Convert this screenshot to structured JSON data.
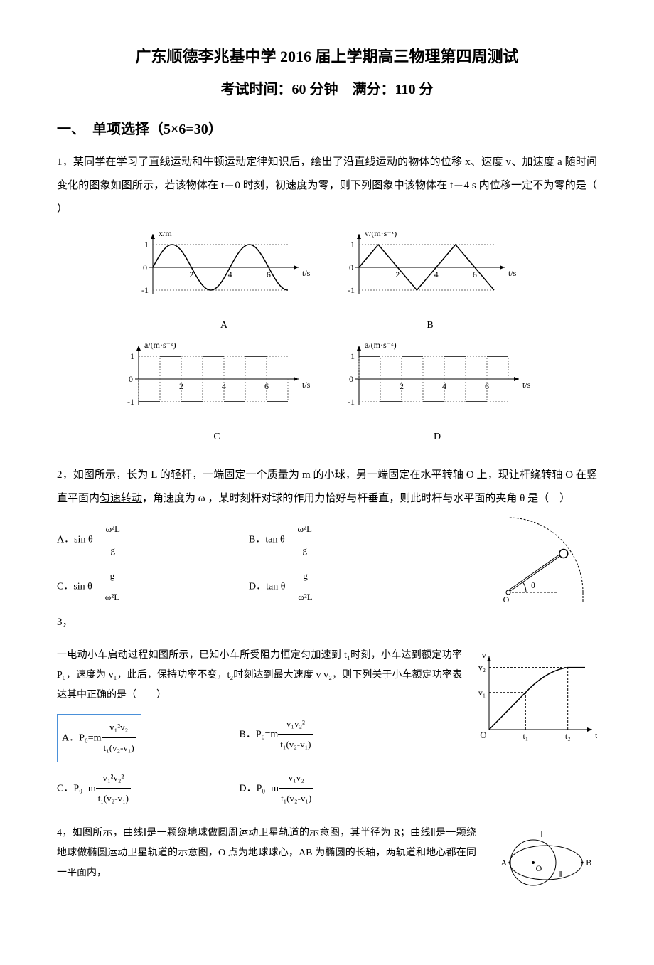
{
  "title_main": "广东顺德李兆基中学 2016 届上学期高三物理第四周测试",
  "title_sub": "考试时间：60 分钟　满分：110 分",
  "section1_header": "一、　单项选择（5×6=30）",
  "q1": {
    "prefix": "1，",
    "text": "某同学在学习了直线运动和牛顿运动定律知识后，绘出了沿直线运动的物体的位移 x、速度 v、加速度 a 随时间变化的图象如图所示，若该物体在 t＝0 时刻，初速度为零，则下列图象中该物体在 t＝4 s 内位移一定不为零的是（ ）",
    "charts": {
      "A": {
        "type": "line",
        "ylabel": "x/m",
        "xlabel": "t/s",
        "ylim": [
          -1,
          1
        ],
        "xlim": [
          0,
          7
        ],
        "yticks": [
          -1,
          0,
          1
        ],
        "xticks": [
          2,
          4,
          6
        ],
        "curve": "sine",
        "period": 4,
        "amplitude": 1,
        "line_color": "#000000",
        "grid_dash": "2,2",
        "grid_color": "#666666"
      },
      "B": {
        "type": "line",
        "ylabel": "v/(m·s⁻¹)",
        "xlabel": "t/s",
        "ylim": [
          -1,
          1
        ],
        "xlim": [
          0,
          7
        ],
        "yticks": [
          -1,
          0,
          1
        ],
        "xticks": [
          2,
          4,
          6
        ],
        "curve": "triangle",
        "period": 4,
        "amplitude": 1,
        "line_color": "#000000",
        "grid_dash": "2,2",
        "grid_color": "#666666"
      },
      "C": {
        "type": "step",
        "ylabel": "a/(m·s⁻²)",
        "xlabel": "t/s",
        "ylim": [
          -1,
          1
        ],
        "xlim": [
          0,
          7
        ],
        "yticks": [
          -1,
          0,
          1
        ],
        "xticks": [
          2,
          4,
          6
        ],
        "pattern": "square_alt_start_neg",
        "line_color": "#000000",
        "grid_dash": "2,2",
        "grid_color": "#666666"
      },
      "D": {
        "type": "step",
        "ylabel": "a/(m·s⁻²)",
        "xlabel": "t/s",
        "ylim": [
          -1,
          1
        ],
        "xlim": [
          0,
          7
        ],
        "yticks": [
          -1,
          0,
          1
        ],
        "xticks": [
          2,
          4,
          6
        ],
        "pattern": "square_alt_start_pos",
        "line_color": "#000000",
        "grid_dash": "2,2",
        "grid_color": "#666666"
      },
      "labels": {
        "A": "A",
        "B": "B",
        "C": "C",
        "D": "D"
      }
    }
  },
  "q2": {
    "prefix": "2，",
    "text_before": "如图所示，长为 L 的轻杆，一端固定一个质量为 m 的小球，另一端固定在水平转轴 O 上，现让杆绕转轴 O 在竖直平面内",
    "underline": "匀速转动",
    "text_after": "，角速度为 ω ，某时刻杆对球的作用力恰好与杆垂直，则此时杆与水平面的夹角 θ 是（　）",
    "options": {
      "A": {
        "label": "A．sin θ = ",
        "num": "ω²L",
        "den": "g"
      },
      "B": {
        "label": "B．tan θ = ",
        "num": "ω²L",
        "den": "g"
      },
      "C": {
        "label": "C．sin θ = ",
        "num": "g",
        "den": "ω²L"
      },
      "D": {
        "label": "D．tan θ = ",
        "num": "g",
        "den": "ω²L"
      }
    },
    "figure": {
      "type": "diagram",
      "rod_angle_deg": 35,
      "pivot_label": "O",
      "angle_label": "θ",
      "ball_radius": 6,
      "line_color": "#000000",
      "dash": "3,2"
    }
  },
  "q3": {
    "prefix": "3，",
    "text": "一电动小车启动过程如图所示，已知小车所受阻力恒定匀加速到 t₁时刻，小车达到额定功率 P₀，速度为 v₁，此后，保持功率不变，t₂时刻达到最大速度 v v₂，则下列关于小车额定功率表达其中正确的是（　　）",
    "options": {
      "A": {
        "label": "A．P₀=m",
        "num": "v₁²v₂",
        "den": "t₁(v₂-v₁)",
        "boxed": true
      },
      "B": {
        "label": "B．P₀=m",
        "num": "v₁v₂²",
        "den": "t₁(v₂-v₁)"
      },
      "C": {
        "label": "C．P₀=m",
        "num": "v₁²v₂²",
        "den": "t₁(v₂-v₁)"
      },
      "D": {
        "label": "D．P₀=m",
        "num": "v₁v₂",
        "den": "t₁(v₂-v₁)"
      }
    },
    "figure": {
      "type": "line",
      "ylabel": "v",
      "xlabel": "t",
      "xticks": [
        "t₁",
        "t₂"
      ],
      "yticks": [
        "v₁",
        "v₂"
      ],
      "curve_points": [
        [
          0,
          0
        ],
        [
          0.35,
          0.55
        ],
        [
          0.7,
          0.9
        ],
        [
          1.0,
          1.0
        ]
      ],
      "line_color": "#000000",
      "dash": "3,2"
    }
  },
  "q4": {
    "prefix": "4，",
    "text": "如图所示，曲线Ⅰ是一颗绕地球做圆周运动卫星轨道的示意图，其半径为 R；曲线Ⅱ是一颗绕地球做椭圆运动卫星轨道的示意图，O 点为地球球心，AB 为椭圆的长轴，两轨道和地心都在同一平面内，",
    "figure": {
      "type": "diagram",
      "circle_r": 1.0,
      "ellipse_a": 1.6,
      "ellipse_b": 0.75,
      "O_label": "O",
      "A_label": "A",
      "B_label": "B",
      "I_label": "Ⅰ",
      "II_label": "Ⅱ",
      "line_color": "#000000"
    }
  }
}
